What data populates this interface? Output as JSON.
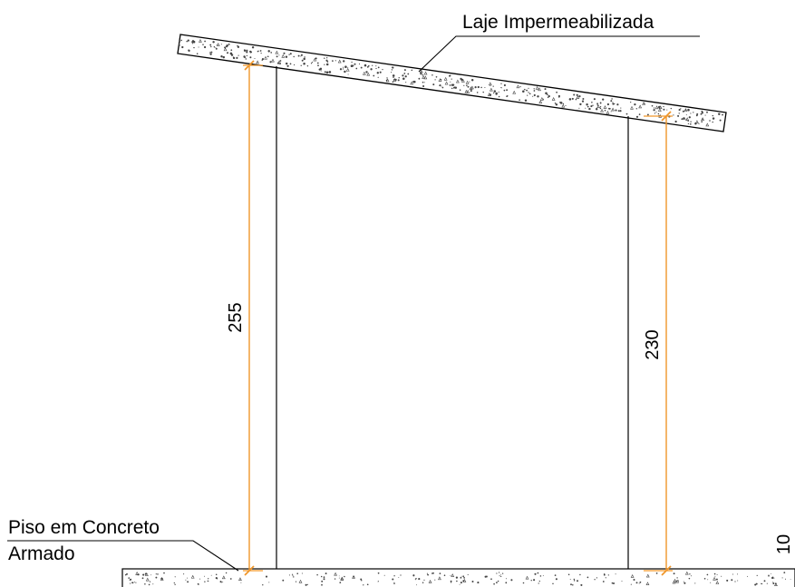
{
  "labels": {
    "roof": "Laje Impermeabilizada",
    "floor_line1": "Piso em Concreto",
    "floor_line2": "Armado"
  },
  "dimensions": {
    "left_height": "255",
    "right_height": "230",
    "slab_thickness": "10"
  },
  "colors": {
    "line": "#000000",
    "dimension": "#f0962a",
    "hatch": "#444444"
  }
}
